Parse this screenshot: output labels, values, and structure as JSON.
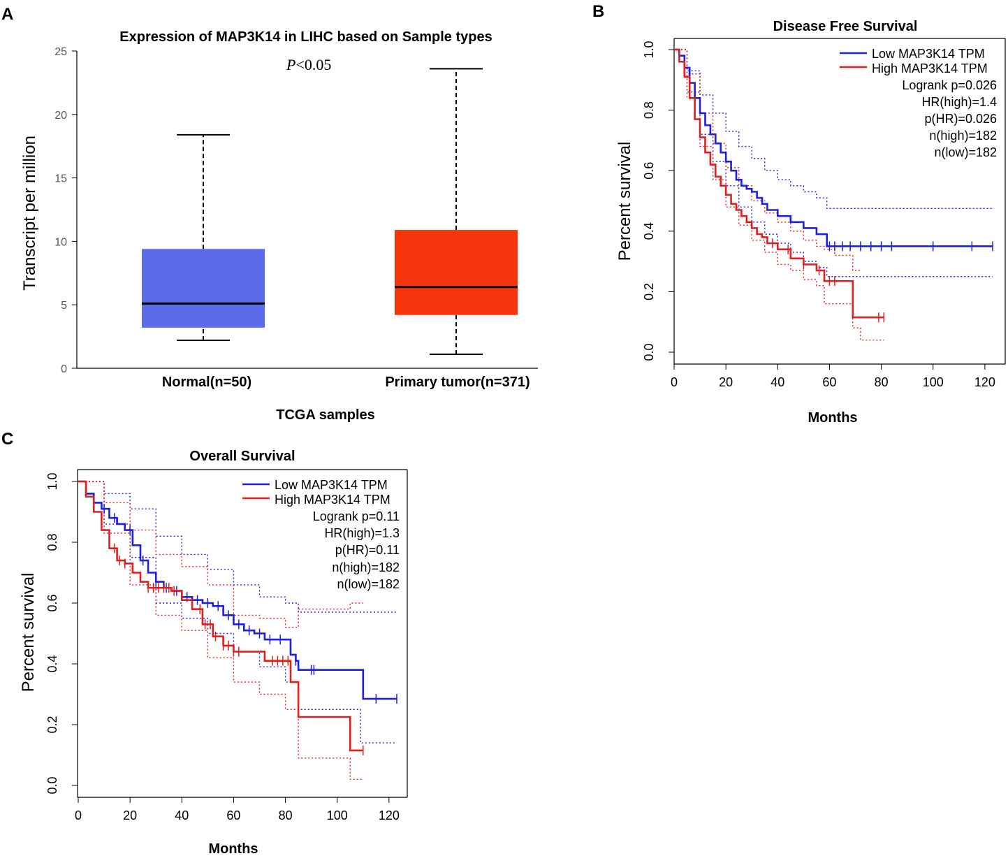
{
  "panels": {
    "a": {
      "label": "A"
    },
    "b": {
      "label": "B"
    },
    "c": {
      "label": "C"
    }
  },
  "chart_data": [
    {
      "id": "A",
      "type": "box",
      "title": "Expression of MAP3K14 in LIHC based on Sample types",
      "annotation": {
        "p_italic": "P",
        "p_rest": "<0.05"
      },
      "xlabel": "TCGA samples",
      "ylabel": "Transcript per million",
      "ylim": [
        0,
        25
      ],
      "yticks": [
        0,
        5,
        10,
        15,
        20,
        25
      ],
      "categories": [
        "Normal(n=50)",
        "Primary tumor(n=371)"
      ],
      "boxes": [
        {
          "name": "Normal(n=50)",
          "min": 2.2,
          "q1": 3.2,
          "median": 5.1,
          "q3": 9.4,
          "max": 18.4,
          "color": "#5a6ae8"
        },
        {
          "name": "Primary tumor(n=371)",
          "min": 1.1,
          "q1": 4.2,
          "median": 6.4,
          "q3": 10.9,
          "max": 23.6,
          "color": "#f5360c"
        }
      ]
    },
    {
      "id": "B",
      "type": "line",
      "title": "Disease Free Survival",
      "xlabel": "Months",
      "ylabel": "Percent survival",
      "xlim": [
        0,
        125
      ],
      "ylim": [
        0,
        1
      ],
      "xticks": [
        0,
        20,
        40,
        60,
        80,
        100,
        120
      ],
      "yticks": [
        "0.0",
        "0.2",
        "0.4",
        "0.6",
        "0.8",
        "1.0"
      ],
      "legend": [
        {
          "label": "Low MAP3K14 TPM",
          "color": "#1f1fe0"
        },
        {
          "label": "High MAP3K14 TPM",
          "color": "#e01f1f"
        }
      ],
      "stats": [
        "Logrank p=0.026",
        "HR(high)=1.4",
        "p(HR)=0.026",
        "n(high)=182",
        "n(low)=182"
      ],
      "series": [
        {
          "name": "Low MAP3K14 TPM",
          "color": "#1f1fe0",
          "x": [
            0,
            2,
            4,
            6,
            8,
            10,
            12,
            14,
            16,
            18,
            20,
            22,
            24,
            26,
            28,
            30,
            32,
            34,
            36,
            40,
            45,
            50,
            55,
            59,
            62,
            70,
            80,
            100,
            123
          ],
          "y": [
            1,
            0.98,
            0.94,
            0.89,
            0.84,
            0.79,
            0.75,
            0.72,
            0.69,
            0.66,
            0.63,
            0.6,
            0.57,
            0.55,
            0.54,
            0.53,
            0.51,
            0.49,
            0.47,
            0.45,
            0.43,
            0.41,
            0.39,
            0.35,
            0.35,
            0.35,
            0.35,
            0.35,
            0.35
          ],
          "censor_x": [
            60,
            62,
            65,
            68,
            72,
            76,
            80,
            84,
            100,
            115,
            123
          ]
        },
        {
          "name": "High MAP3K14 TPM",
          "color": "#e01f1f",
          "x": [
            0,
            2,
            4,
            6,
            8,
            10,
            12,
            14,
            16,
            18,
            20,
            22,
            24,
            26,
            28,
            30,
            32,
            34,
            36,
            40,
            45,
            50,
            55,
            58,
            62,
            69,
            72,
            81
          ],
          "y": [
            1,
            0.96,
            0.91,
            0.84,
            0.77,
            0.71,
            0.66,
            0.62,
            0.58,
            0.55,
            0.52,
            0.49,
            0.47,
            0.45,
            0.43,
            0.41,
            0.39,
            0.38,
            0.36,
            0.34,
            0.31,
            0.29,
            0.27,
            0.235,
            0.235,
            0.115,
            0.115,
            0.115
          ],
          "censor_x": [
            38,
            44,
            50,
            56,
            60,
            62,
            79,
            81
          ]
        }
      ],
      "ci_series": [
        {
          "name": "Low upper",
          "color": "#1f1fe0",
          "x": [
            0,
            5,
            10,
            15,
            20,
            25,
            30,
            35,
            40,
            45,
            50,
            55,
            59,
            123
          ],
          "y": [
            1,
            0.93,
            0.85,
            0.79,
            0.73,
            0.68,
            0.64,
            0.6,
            0.57,
            0.55,
            0.53,
            0.51,
            0.475,
            0.475
          ]
        },
        {
          "name": "Low lower",
          "color": "#1f1fe0",
          "x": [
            0,
            5,
            10,
            15,
            20,
            25,
            30,
            35,
            40,
            45,
            50,
            55,
            59,
            123
          ],
          "y": [
            1,
            0.86,
            0.72,
            0.63,
            0.55,
            0.48,
            0.43,
            0.39,
            0.36,
            0.33,
            0.3,
            0.28,
            0.25,
            0.25
          ]
        },
        {
          "name": "High upper",
          "color": "#e01f1f",
          "x": [
            0,
            5,
            10,
            15,
            20,
            25,
            30,
            35,
            40,
            45,
            50,
            55,
            58,
            62,
            69,
            72
          ],
          "y": [
            1,
            0.92,
            0.79,
            0.69,
            0.61,
            0.55,
            0.5,
            0.46,
            0.43,
            0.4,
            0.37,
            0.35,
            0.34,
            0.32,
            0.27,
            0.27
          ]
        },
        {
          "name": "High lower",
          "color": "#e01f1f",
          "x": [
            0,
            5,
            10,
            15,
            20,
            25,
            30,
            35,
            40,
            45,
            50,
            55,
            58,
            69,
            72,
            81
          ],
          "y": [
            1,
            0.84,
            0.68,
            0.57,
            0.48,
            0.42,
            0.37,
            0.33,
            0.29,
            0.27,
            0.24,
            0.22,
            0.16,
            0.08,
            0.04,
            0.04
          ]
        }
      ]
    },
    {
      "id": "C",
      "type": "line",
      "title": "Overall Survival",
      "xlabel": "Months",
      "ylabel": "Percent survival",
      "xlim": [
        0,
        127
      ],
      "ylim": [
        0,
        1
      ],
      "xticks": [
        0,
        20,
        40,
        60,
        80,
        100,
        120
      ],
      "yticks": [
        "0.0",
        "0.2",
        "0.4",
        "0.6",
        "0.8",
        "1.0"
      ],
      "legend": [
        {
          "label": "Low MAP3K14 TPM",
          "color": "#1f1fe0"
        },
        {
          "label": "High MAP3K14 TPM",
          "color": "#e01f1f"
        }
      ],
      "stats": [
        "Logrank p=0.11",
        "HR(high)=1.3",
        "p(HR)=0.11",
        "n(high)=182",
        "n(low)=182"
      ],
      "series": [
        {
          "name": "Low MAP3K14 TPM",
          "color": "#1f1fe0",
          "x": [
            0,
            3,
            6,
            9,
            12,
            15,
            18,
            21,
            24,
            27,
            30,
            33,
            36,
            40,
            44,
            48,
            52,
            56,
            60,
            64,
            68,
            72,
            76,
            80,
            82,
            84,
            85,
            90,
            100,
            109,
            110,
            123
          ],
          "y": [
            1,
            0.96,
            0.93,
            0.91,
            0.88,
            0.86,
            0.84,
            0.79,
            0.74,
            0.7,
            0.67,
            0.65,
            0.64,
            0.62,
            0.61,
            0.6,
            0.59,
            0.56,
            0.53,
            0.51,
            0.5,
            0.48,
            0.48,
            0.48,
            0.43,
            0.41,
            0.38,
            0.38,
            0.38,
            0.38,
            0.285,
            0.285
          ],
          "censor_x": [
            10,
            14,
            20,
            25,
            30,
            34,
            38,
            42,
            46,
            50,
            54,
            58,
            62,
            66,
            70,
            74,
            78,
            84,
            90,
            91,
            115,
            123
          ]
        },
        {
          "name": "High MAP3K14 TPM",
          "color": "#e01f1f",
          "x": [
            0,
            3,
            6,
            9,
            12,
            15,
            18,
            21,
            24,
            27,
            30,
            33,
            36,
            40,
            44,
            48,
            52,
            56,
            60,
            65,
            72,
            80,
            82,
            84,
            85,
            95,
            105,
            110
          ],
          "y": [
            1,
            0.95,
            0.9,
            0.84,
            0.78,
            0.74,
            0.73,
            0.7,
            0.67,
            0.65,
            0.65,
            0.65,
            0.64,
            0.61,
            0.58,
            0.53,
            0.49,
            0.46,
            0.44,
            0.44,
            0.41,
            0.41,
            0.34,
            0.34,
            0.225,
            0.225,
            0.115,
            0.115
          ],
          "censor_x": [
            14,
            16,
            18,
            27,
            29,
            31,
            33,
            35,
            37,
            47,
            49,
            51,
            53,
            56,
            58,
            60,
            62,
            75,
            77,
            79,
            81,
            110
          ]
        }
      ],
      "ci_series": [
        {
          "name": "Low upper",
          "color": "#1f1fe0",
          "x": [
            0,
            10,
            20,
            30,
            40,
            50,
            60,
            70,
            80,
            85,
            123
          ],
          "y": [
            1,
            0.96,
            0.91,
            0.82,
            0.76,
            0.71,
            0.66,
            0.62,
            0.6,
            0.57,
            0.57
          ]
        },
        {
          "name": "Low lower",
          "color": "#1f1fe0",
          "x": [
            0,
            10,
            20,
            30,
            40,
            50,
            60,
            70,
            80,
            85,
            108,
            109,
            123
          ],
          "y": [
            1,
            0.86,
            0.75,
            0.6,
            0.55,
            0.5,
            0.44,
            0.39,
            0.34,
            0.25,
            0.25,
            0.14,
            0.14
          ]
        },
        {
          "name": "High upper",
          "color": "#e01f1f",
          "x": [
            0,
            10,
            20,
            30,
            40,
            50,
            60,
            70,
            80,
            85,
            105,
            110
          ],
          "y": [
            1,
            0.93,
            0.84,
            0.76,
            0.72,
            0.66,
            0.56,
            0.55,
            0.52,
            0.58,
            0.6,
            0.6
          ]
        },
        {
          "name": "High lower",
          "color": "#e01f1f",
          "x": [
            0,
            10,
            20,
            30,
            40,
            50,
            60,
            70,
            80,
            85,
            105,
            110
          ],
          "y": [
            1,
            0.83,
            0.66,
            0.56,
            0.51,
            0.42,
            0.34,
            0.3,
            0.25,
            0.09,
            0.02,
            0.02
          ]
        }
      ]
    }
  ]
}
